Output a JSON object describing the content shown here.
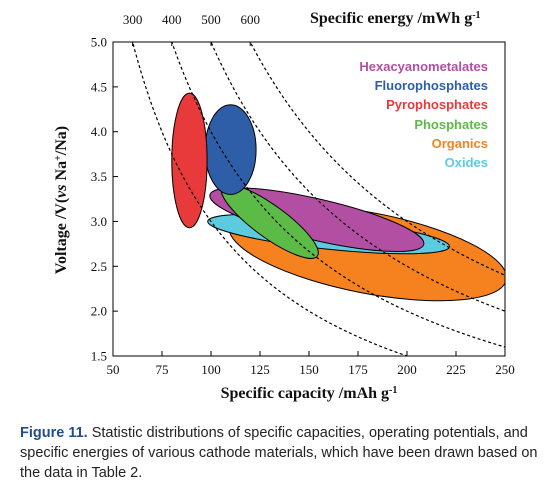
{
  "chart_data": {
    "type": "scatter",
    "title": "",
    "xlabel": "Specific capacity /mAh g",
    "xlabel_sup": "-1",
    "ylabel_main": "Voltage /V(",
    "ylabel_vs": "vs",
    "ylabel_na": " Na",
    "ylabel_sup": "+",
    "ylabel_tail": "/Na)",
    "top_label": "Specific energy /mWh g",
    "top_label_sup": "-1",
    "xlim": [
      50,
      250
    ],
    "ylim": [
      1.5,
      5.0
    ],
    "x_ticks": [
      "50",
      "75",
      "100",
      "125",
      "150",
      "175",
      "200",
      "225",
      "250"
    ],
    "y_ticks": [
      "1.5",
      "2.0",
      "2.5",
      "3.0",
      "3.5",
      "4.0",
      "4.5",
      "5.0"
    ],
    "energy_ticks": [
      "300",
      "400",
      "500",
      "600"
    ],
    "energy_contours_mWh_g": [
      300,
      400,
      500,
      600
    ],
    "legend_position": "top-right",
    "series": [
      {
        "name": "Organics",
        "color": "#f5821f",
        "cx": 180,
        "cy": 2.65,
        "rx_mAh_g": 72,
        "ry_V": 0.45,
        "tilt_deg": 11
      },
      {
        "name": "Oxides",
        "color": "#5ccbe0",
        "cx": 160,
        "cy": 2.86,
        "rx_mAh_g": 62,
        "ry_V": 0.17,
        "tilt_deg": 6
      },
      {
        "name": "Hexacyanometalates",
        "color": "#b34fa3",
        "cx": 154,
        "cy": 3.02,
        "rx_mAh_g": 56,
        "ry_V": 0.23,
        "tilt_deg": 13
      },
      {
        "name": "Phosphates",
        "color": "#5cba47",
        "cx": 130,
        "cy": 3.0,
        "rx_mAh_g": 30,
        "ry_V": 0.18,
        "tilt_deg": 36
      },
      {
        "name": "Fluorophosphates",
        "color": "#2e5ea8",
        "cx": 110,
        "cy": 3.8,
        "rx_mAh_g": 13,
        "ry_V": 0.5,
        "tilt_deg": 0
      },
      {
        "name": "Pyrophosphates",
        "color": "#e83a3a",
        "cx": 89,
        "cy": 3.68,
        "rx_mAh_g": 9,
        "ry_V": 0.75,
        "tilt_deg": 0
      }
    ]
  },
  "legend": {
    "items": [
      {
        "label": "Hexacyanometalates",
        "color": "#b34fa3"
      },
      {
        "label": "Fluorophosphates",
        "color": "#2e5ea8"
      },
      {
        "label": "Pyrophosphates",
        "color": "#e83a3a"
      },
      {
        "label": "Phosphates",
        "color": "#5cba47"
      },
      {
        "label": "Organics",
        "color": "#f5821f"
      },
      {
        "label": "Oxides",
        "color": "#5ccbe0"
      }
    ]
  },
  "caption": {
    "label": "Figure 11.",
    "text": " Statistic distributions of specific capacities, operating potentials, and specific energies of various cathode materials, which have been drawn based on the data in Table 2."
  }
}
